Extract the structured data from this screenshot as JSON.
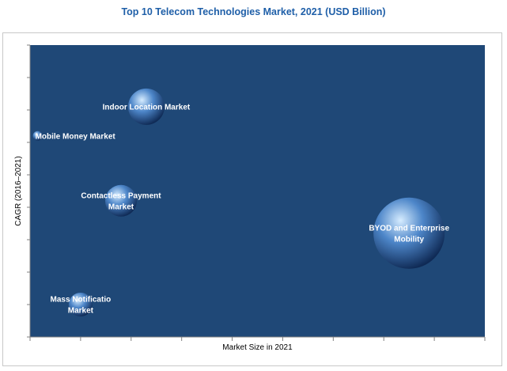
{
  "chart_data": {
    "type": "scatter",
    "title": "Top 10 Telecom Technologies Market, 2021 (USD Billion)",
    "xlabel": "Market Size in 2021",
    "ylabel": "CAGR (2016–2021)",
    "grid": false,
    "axis_ticks_labeled": false,
    "colors": {
      "plot_background": "#1f4877",
      "bubble_light": "#d6ecff",
      "bubble_mid": "#4d86c9",
      "bubble_dark": "#0f2a55",
      "title": "#1f5fa8"
    },
    "points": [
      {
        "label_lines": [
          "Indoor Location Market"
        ],
        "x": 2.3,
        "y": 7.1,
        "size": 23
      },
      {
        "label_lines": [
          "Mobile Money Market"
        ],
        "x": 0.15,
        "y": 6.2,
        "size": 6
      },
      {
        "label_lines": [
          "Contactless Payment",
          "Market"
        ],
        "x": 1.8,
        "y": 4.2,
        "size": 20
      },
      {
        "label_lines": [
          "BYOD and Enterprise",
          "Mobility"
        ],
        "x": 7.5,
        "y": 3.2,
        "size": 45
      },
      {
        "label_lines": [
          "Mass Notificatio",
          "Market"
        ],
        "x": 1.0,
        "y": 1.0,
        "size": 15
      }
    ]
  }
}
